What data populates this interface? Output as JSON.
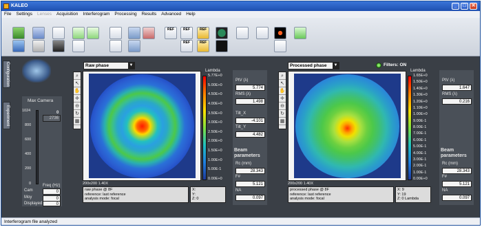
{
  "window": {
    "title": "KALEO",
    "minimize": "_",
    "maximize": "□",
    "close": "✕"
  },
  "menu": [
    "File",
    "Settings",
    "Lenses",
    "Acquisition",
    "Interferogram",
    "Processing",
    "Results",
    "Advanced",
    "Help"
  ],
  "menu_disabled": [
    "Lenses"
  ],
  "toolbar": {
    "ref_labels": [
      "REF",
      "REF",
      "REF",
      "REF",
      "REF"
    ]
  },
  "side_tabs": {
    "configuration": "Configuration",
    "experiment": "Experiment"
  },
  "camera": {
    "title": "Max Camera",
    "top_value": "0",
    "max_value": "2736",
    "scale": [
      "1024",
      "800",
      "600",
      "400",
      "200",
      "0"
    ],
    "freq_label": "Freq (Hz)",
    "rows": [
      {
        "label": "Cam",
        "value": "0"
      },
      {
        "label": "Moy",
        "value": "0"
      },
      {
        "label": "Displayed",
        "value": "0"
      }
    ]
  },
  "left_plot": {
    "selector": "Raw phase",
    "units": "Lambda",
    "scale": [
      "5.77E+0",
      "5.00E+0",
      "4.50E+0",
      "4.00E+0",
      "3.50E+0",
      "3.00E+0",
      "2.50E+0",
      "2.00E+0",
      "1.50E+0",
      "1.00E+0",
      "5.00E-1",
      "0.00E+0"
    ],
    "resolution": "200x200 1.40X",
    "info": [
      "raw phase @ 8F",
      "reference: last reference",
      "analysis mode: focal"
    ],
    "coords": [
      "X:",
      "Y:",
      "Z: 0"
    ],
    "stats": {
      "ptv_label": "PtV (λ)",
      "ptv": "5.774",
      "rms_label": "RMS (λ)",
      "rms": "1.498",
      "tiltx_label": "Tilt_X",
      "tiltx": "-4.101",
      "tilty_label": "Tilt_Y",
      "tilty": "4.482",
      "beam_label": "Beam parameters",
      "rc_label": "Rc (mm)",
      "rc": "28.343",
      "fnum_label": "F#",
      "fnum": "5.121",
      "na_label": "NA",
      "na": "0.097"
    }
  },
  "right_plot": {
    "selector": "Processed phase",
    "filters": "Filters: ON",
    "units": "Lambda",
    "scale": [
      "1.65E+0",
      "1.50E+0",
      "1.40E+0",
      "1.30E+0",
      "1.20E+0",
      "1.10E+0",
      "1.00E+0",
      "9.00E-1",
      "8.00E-1",
      "7.00E-1",
      "6.00E-1",
      "5.00E-1",
      "4.00E-1",
      "3.00E-1",
      "2.00E-1",
      "1.00E-1",
      "0.00E+0"
    ],
    "resolution": "200x200 1.40X",
    "info": [
      "processed phase @ 8F",
      "reference: last reference",
      "analysis mode: focal"
    ],
    "coords": [
      "X: 9",
      "Y: 19",
      "Z: 0 Lambda"
    ],
    "stats": {
      "ptv_label": "PtV (λ)",
      "ptv": "1.647",
      "rms_label": "RMS (λ)",
      "rms": "0.216",
      "beam_label": "Beam parameters",
      "rc_label": "Rc (mm)",
      "rc": "28.343",
      "fnum_label": "F#",
      "fnum": "5.121",
      "na_label": "NA",
      "na": "0.097"
    }
  },
  "status": "Interferogram file analyzed"
}
